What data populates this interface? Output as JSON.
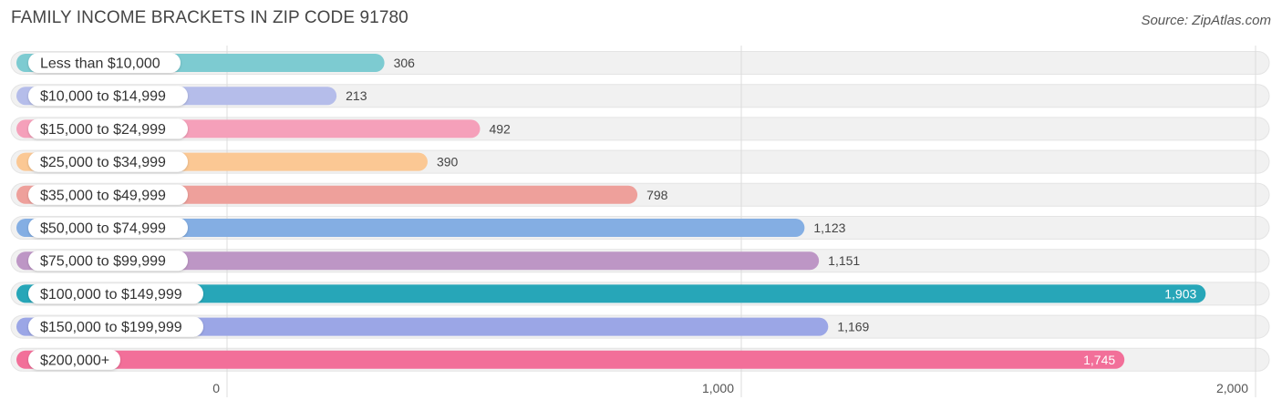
{
  "header": {
    "title": "FAMILY INCOME BRACKETS IN ZIP CODE 91780",
    "source": "Source: ZipAtlas.com"
  },
  "chart_data": {
    "type": "bar",
    "orientation": "horizontal",
    "title": "FAMILY INCOME BRACKETS IN ZIP CODE 91780",
    "xlabel": "",
    "ylabel": "",
    "xlim": [
      0,
      2000
    ],
    "x_ticks": [
      0,
      1000,
      2000
    ],
    "x_tick_labels": [
      "0",
      "1,000",
      "2,000"
    ],
    "grid": "vertical",
    "categories": [
      "Less than $10,000",
      "$10,000 to $14,999",
      "$15,000 to $24,999",
      "$25,000 to $34,999",
      "$35,000 to $49,999",
      "$50,000 to $74,999",
      "$75,000 to $99,999",
      "$100,000 to $149,999",
      "$150,000 to $199,999",
      "$200,000+"
    ],
    "values": [
      306,
      213,
      492,
      390,
      798,
      1123,
      1151,
      1903,
      1169,
      1745
    ],
    "value_labels": [
      "306",
      "213",
      "492",
      "390",
      "798",
      "1,123",
      "1,151",
      "1,903",
      "1,169",
      "1,745"
    ],
    "colors": [
      "#7dcbd1",
      "#b5bdea",
      "#f5a0ba",
      "#fbc894",
      "#eea09b",
      "#84aee3",
      "#bd96c5",
      "#27a6b8",
      "#9ba6e6",
      "#f26f99"
    ],
    "track_color": "#f1f1f1"
  }
}
